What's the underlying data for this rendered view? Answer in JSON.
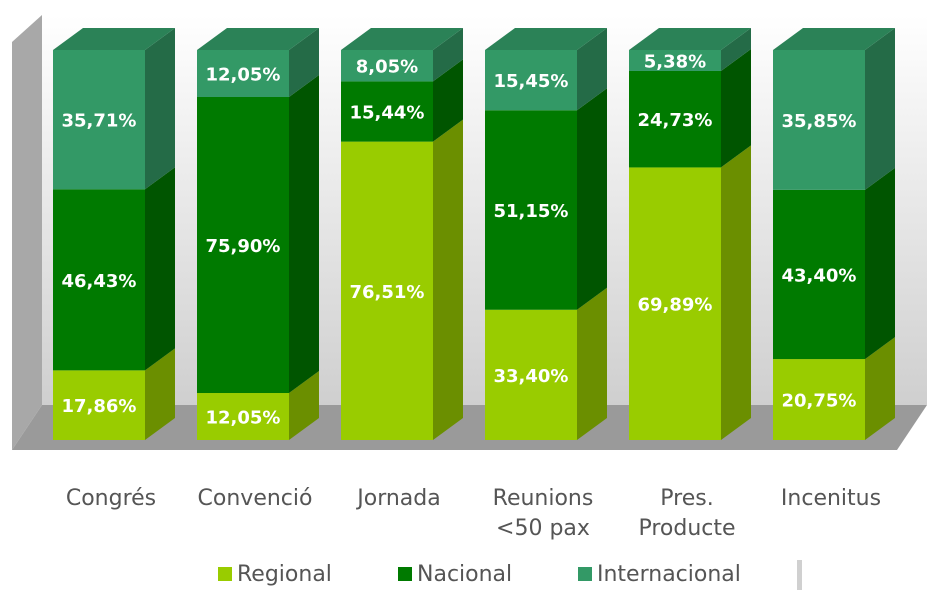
{
  "chart_data": {
    "type": "bar",
    "stacked": true,
    "categories": [
      "Congrés",
      "Convenció",
      "Jornada",
      "Reunions\n<50 pax",
      "Pres.\nProducte",
      "Incenitus"
    ],
    "series": [
      {
        "name": "Regional",
        "color": "#99cc00",
        "values": [
          17.86,
          12.05,
          76.51,
          33.4,
          69.89,
          20.75
        ],
        "value_labels": [
          "17,86%",
          "12,05%",
          "76,51%",
          "33,40%",
          "69,89%",
          "20,75%"
        ]
      },
      {
        "name": "Nacional",
        "color": "#007a00",
        "values": [
          46.43,
          75.9,
          15.44,
          51.15,
          24.73,
          43.4
        ],
        "value_labels": [
          "46,43%",
          "75,90%",
          "15,44%",
          "51,15%",
          "24,73%",
          "43,40%"
        ]
      },
      {
        "name": "Internacional",
        "color": "#339966",
        "values": [
          35.71,
          12.05,
          8.05,
          15.45,
          5.38,
          35.85
        ],
        "value_labels": [
          "35,71%",
          "12,05%",
          "8,05%",
          "15,45%",
          "5,38%",
          "35,85%"
        ]
      }
    ],
    "legend": "bottom"
  }
}
